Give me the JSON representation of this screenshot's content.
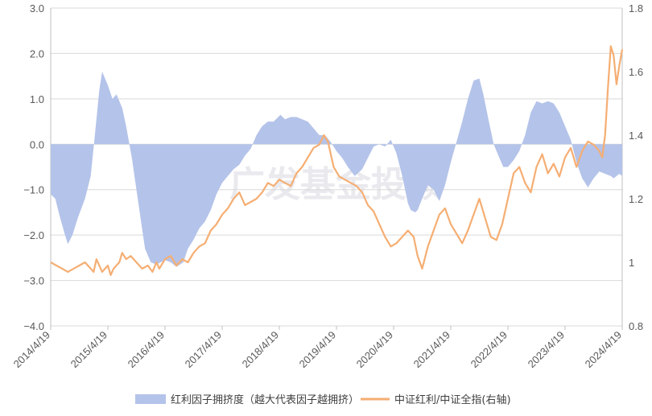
{
  "chart_data": {
    "type": "area",
    "watermark": "广发基金投顾",
    "colors": {
      "area": "#b4c3e9",
      "line": "#f5ae73",
      "grid": "#d9d9d9",
      "axis": "#bfbfbf",
      "text": "#595959"
    },
    "left_axis": {
      "min": -4.0,
      "max": 3.0,
      "ticks": [
        "3.0",
        "2.0",
        "1.0",
        "0.0",
        "−1.0",
        "−2.0",
        "−3.0",
        "−4.0"
      ],
      "tick_values": [
        3,
        2,
        1,
        0,
        -1,
        -2,
        -3,
        -4
      ]
    },
    "right_axis": {
      "min": 0.8,
      "max": 1.8,
      "ticks": [
        "1.8",
        "1.6",
        "1.4",
        "1.2",
        "1",
        "0.8"
      ],
      "tick_values": [
        1.8,
        1.6,
        1.4,
        1.2,
        1.0,
        0.8
      ]
    },
    "x_axis": {
      "min": 2014.3,
      "max": 2024.3,
      "ticks": [
        "2014/4/19",
        "2015/4/19",
        "2016/4/19",
        "2017/4/19",
        "2018/4/19",
        "2019/4/19",
        "2020/4/19",
        "2021/4/19",
        "2022/4/19",
        "2023/4/19",
        "2024/4/19"
      ],
      "tick_values": [
        2014.3,
        2015.3,
        2016.3,
        2017.3,
        2018.3,
        2019.3,
        2020.3,
        2021.3,
        2022.3,
        2023.3,
        2024.3
      ]
    },
    "series": [
      {
        "name": "红利因子拥挤度（越大代表因子越拥挤）",
        "axis": "left",
        "kind": "area",
        "x": [
          2014.3,
          2014.38,
          2014.46,
          2014.55,
          2014.6,
          2014.68,
          2014.78,
          2014.9,
          2015.0,
          2015.08,
          2015.15,
          2015.2,
          2015.3,
          2015.38,
          2015.45,
          2015.55,
          2015.62,
          2015.72,
          2015.8,
          2015.88,
          2015.95,
          2016.05,
          2016.15,
          2016.3,
          2016.4,
          2016.5,
          2016.62,
          2016.7,
          2016.8,
          2016.9,
          2017.0,
          2017.1,
          2017.2,
          2017.3,
          2017.4,
          2017.5,
          2017.6,
          2017.7,
          2017.8,
          2017.9,
          2018.0,
          2018.1,
          2018.2,
          2018.32,
          2018.4,
          2018.5,
          2018.6,
          2018.7,
          2018.8,
          2018.9,
          2019.0,
          2019.1,
          2019.2,
          2019.3,
          2019.4,
          2019.5,
          2019.62,
          2019.75,
          2019.85,
          2019.95,
          2020.05,
          2020.15,
          2020.25,
          2020.35,
          2020.45,
          2020.5,
          2020.55,
          2020.6,
          2020.68,
          2020.72,
          2020.8,
          2020.9,
          2021.0,
          2021.1,
          2021.2,
          2021.3,
          2021.4,
          2021.5,
          2021.6,
          2021.7,
          2021.8,
          2021.87,
          2021.95,
          2022.05,
          2022.15,
          2022.22,
          2022.3,
          2022.4,
          2022.5,
          2022.6,
          2022.7,
          2022.8,
          2022.9,
          2023.0,
          2023.1,
          2023.2,
          2023.3,
          2023.4,
          2023.5,
          2023.6,
          2023.7,
          2023.8,
          2023.9,
          2024.0,
          2024.1,
          2024.15,
          2024.2,
          2024.25,
          2024.3
        ],
        "values": [
          -1.1,
          -1.2,
          -1.6,
          -2.0,
          -2.2,
          -2.0,
          -1.6,
          -1.2,
          -0.7,
          0.3,
          1.2,
          1.6,
          1.3,
          1.0,
          1.1,
          0.8,
          0.4,
          -0.3,
          -1.0,
          -1.7,
          -2.3,
          -2.6,
          -2.65,
          -2.55,
          -2.6,
          -2.7,
          -2.6,
          -2.3,
          -2.1,
          -1.85,
          -1.7,
          -1.45,
          -1.1,
          -0.85,
          -0.7,
          -0.55,
          -0.45,
          -0.25,
          -0.1,
          0.2,
          0.4,
          0.5,
          0.5,
          0.65,
          0.55,
          0.6,
          0.6,
          0.55,
          0.5,
          0.35,
          0.2,
          0.2,
          0.05,
          -0.15,
          -0.3,
          -0.5,
          -0.7,
          -0.55,
          -0.3,
          -0.05,
          0.0,
          -0.05,
          0.1,
          -0.2,
          -0.7,
          -1.0,
          -1.3,
          -1.45,
          -1.5,
          -1.45,
          -1.2,
          -0.9,
          -1.0,
          -1.25,
          -0.9,
          -0.4,
          0.05,
          0.5,
          1.0,
          1.4,
          1.45,
          1.1,
          0.6,
          0.0,
          -0.3,
          -0.5,
          -0.5,
          -0.35,
          -0.15,
          0.2,
          0.7,
          0.95,
          0.9,
          0.95,
          0.9,
          0.7,
          0.4,
          0.1,
          -0.4,
          -0.75,
          -0.95,
          -0.75,
          -0.6,
          -0.65,
          -0.7,
          -0.75,
          -0.7,
          -0.65,
          -0.7
        ]
      },
      {
        "name": "中证红利/中证全指(右轴)",
        "axis": "right",
        "kind": "line",
        "x": [
          2014.3,
          2014.4,
          2014.5,
          2014.6,
          2014.7,
          2014.8,
          2014.9,
          2015.0,
          2015.05,
          2015.1,
          2015.2,
          2015.3,
          2015.35,
          2015.4,
          2015.5,
          2015.55,
          2015.62,
          2015.7,
          2015.8,
          2015.9,
          2016.0,
          2016.08,
          2016.15,
          2016.2,
          2016.3,
          2016.4,
          2016.5,
          2016.6,
          2016.7,
          2016.8,
          2016.9,
          2017.0,
          2017.1,
          2017.2,
          2017.3,
          2017.4,
          2017.5,
          2017.6,
          2017.7,
          2017.8,
          2017.9,
          2018.0,
          2018.1,
          2018.2,
          2018.3,
          2018.4,
          2018.5,
          2018.6,
          2018.7,
          2018.8,
          2018.9,
          2019.0,
          2019.08,
          2019.15,
          2019.25,
          2019.35,
          2019.45,
          2019.55,
          2019.65,
          2019.75,
          2019.85,
          2019.95,
          2020.05,
          2020.15,
          2020.25,
          2020.35,
          2020.45,
          2020.55,
          2020.65,
          2020.72,
          2020.8,
          2020.9,
          2021.0,
          2021.1,
          2021.2,
          2021.3,
          2021.4,
          2021.5,
          2021.6,
          2021.7,
          2021.8,
          2021.9,
          2022.0,
          2022.1,
          2022.2,
          2022.3,
          2022.4,
          2022.5,
          2022.6,
          2022.7,
          2022.8,
          2022.9,
          2023.0,
          2023.1,
          2023.2,
          2023.3,
          2023.4,
          2023.5,
          2023.6,
          2023.7,
          2023.8,
          2023.9,
          2023.95,
          2024.0,
          2024.05,
          2024.1,
          2024.15,
          2024.2,
          2024.25,
          2024.3
        ],
        "values": [
          1.0,
          0.99,
          0.98,
          0.97,
          0.98,
          0.99,
          1.0,
          0.98,
          0.97,
          1.01,
          0.97,
          0.99,
          0.96,
          0.98,
          1.0,
          1.03,
          1.01,
          1.02,
          1.0,
          0.98,
          0.99,
          0.97,
          1.0,
          0.98,
          1.01,
          1.02,
          0.99,
          1.01,
          1.0,
          1.03,
          1.05,
          1.06,
          1.1,
          1.12,
          1.15,
          1.17,
          1.2,
          1.22,
          1.18,
          1.19,
          1.2,
          1.22,
          1.25,
          1.24,
          1.26,
          1.25,
          1.24,
          1.28,
          1.3,
          1.33,
          1.36,
          1.37,
          1.4,
          1.38,
          1.3,
          1.27,
          1.26,
          1.25,
          1.24,
          1.22,
          1.18,
          1.16,
          1.12,
          1.08,
          1.05,
          1.06,
          1.08,
          1.1,
          1.08,
          1.02,
          0.98,
          1.05,
          1.1,
          1.15,
          1.17,
          1.12,
          1.09,
          1.06,
          1.1,
          1.15,
          1.2,
          1.14,
          1.08,
          1.07,
          1.12,
          1.2,
          1.28,
          1.3,
          1.25,
          1.22,
          1.3,
          1.34,
          1.28,
          1.31,
          1.27,
          1.33,
          1.36,
          1.3,
          1.35,
          1.38,
          1.37,
          1.35,
          1.33,
          1.4,
          1.55,
          1.68,
          1.65,
          1.56,
          1.62,
          1.67
        ]
      }
    ]
  }
}
